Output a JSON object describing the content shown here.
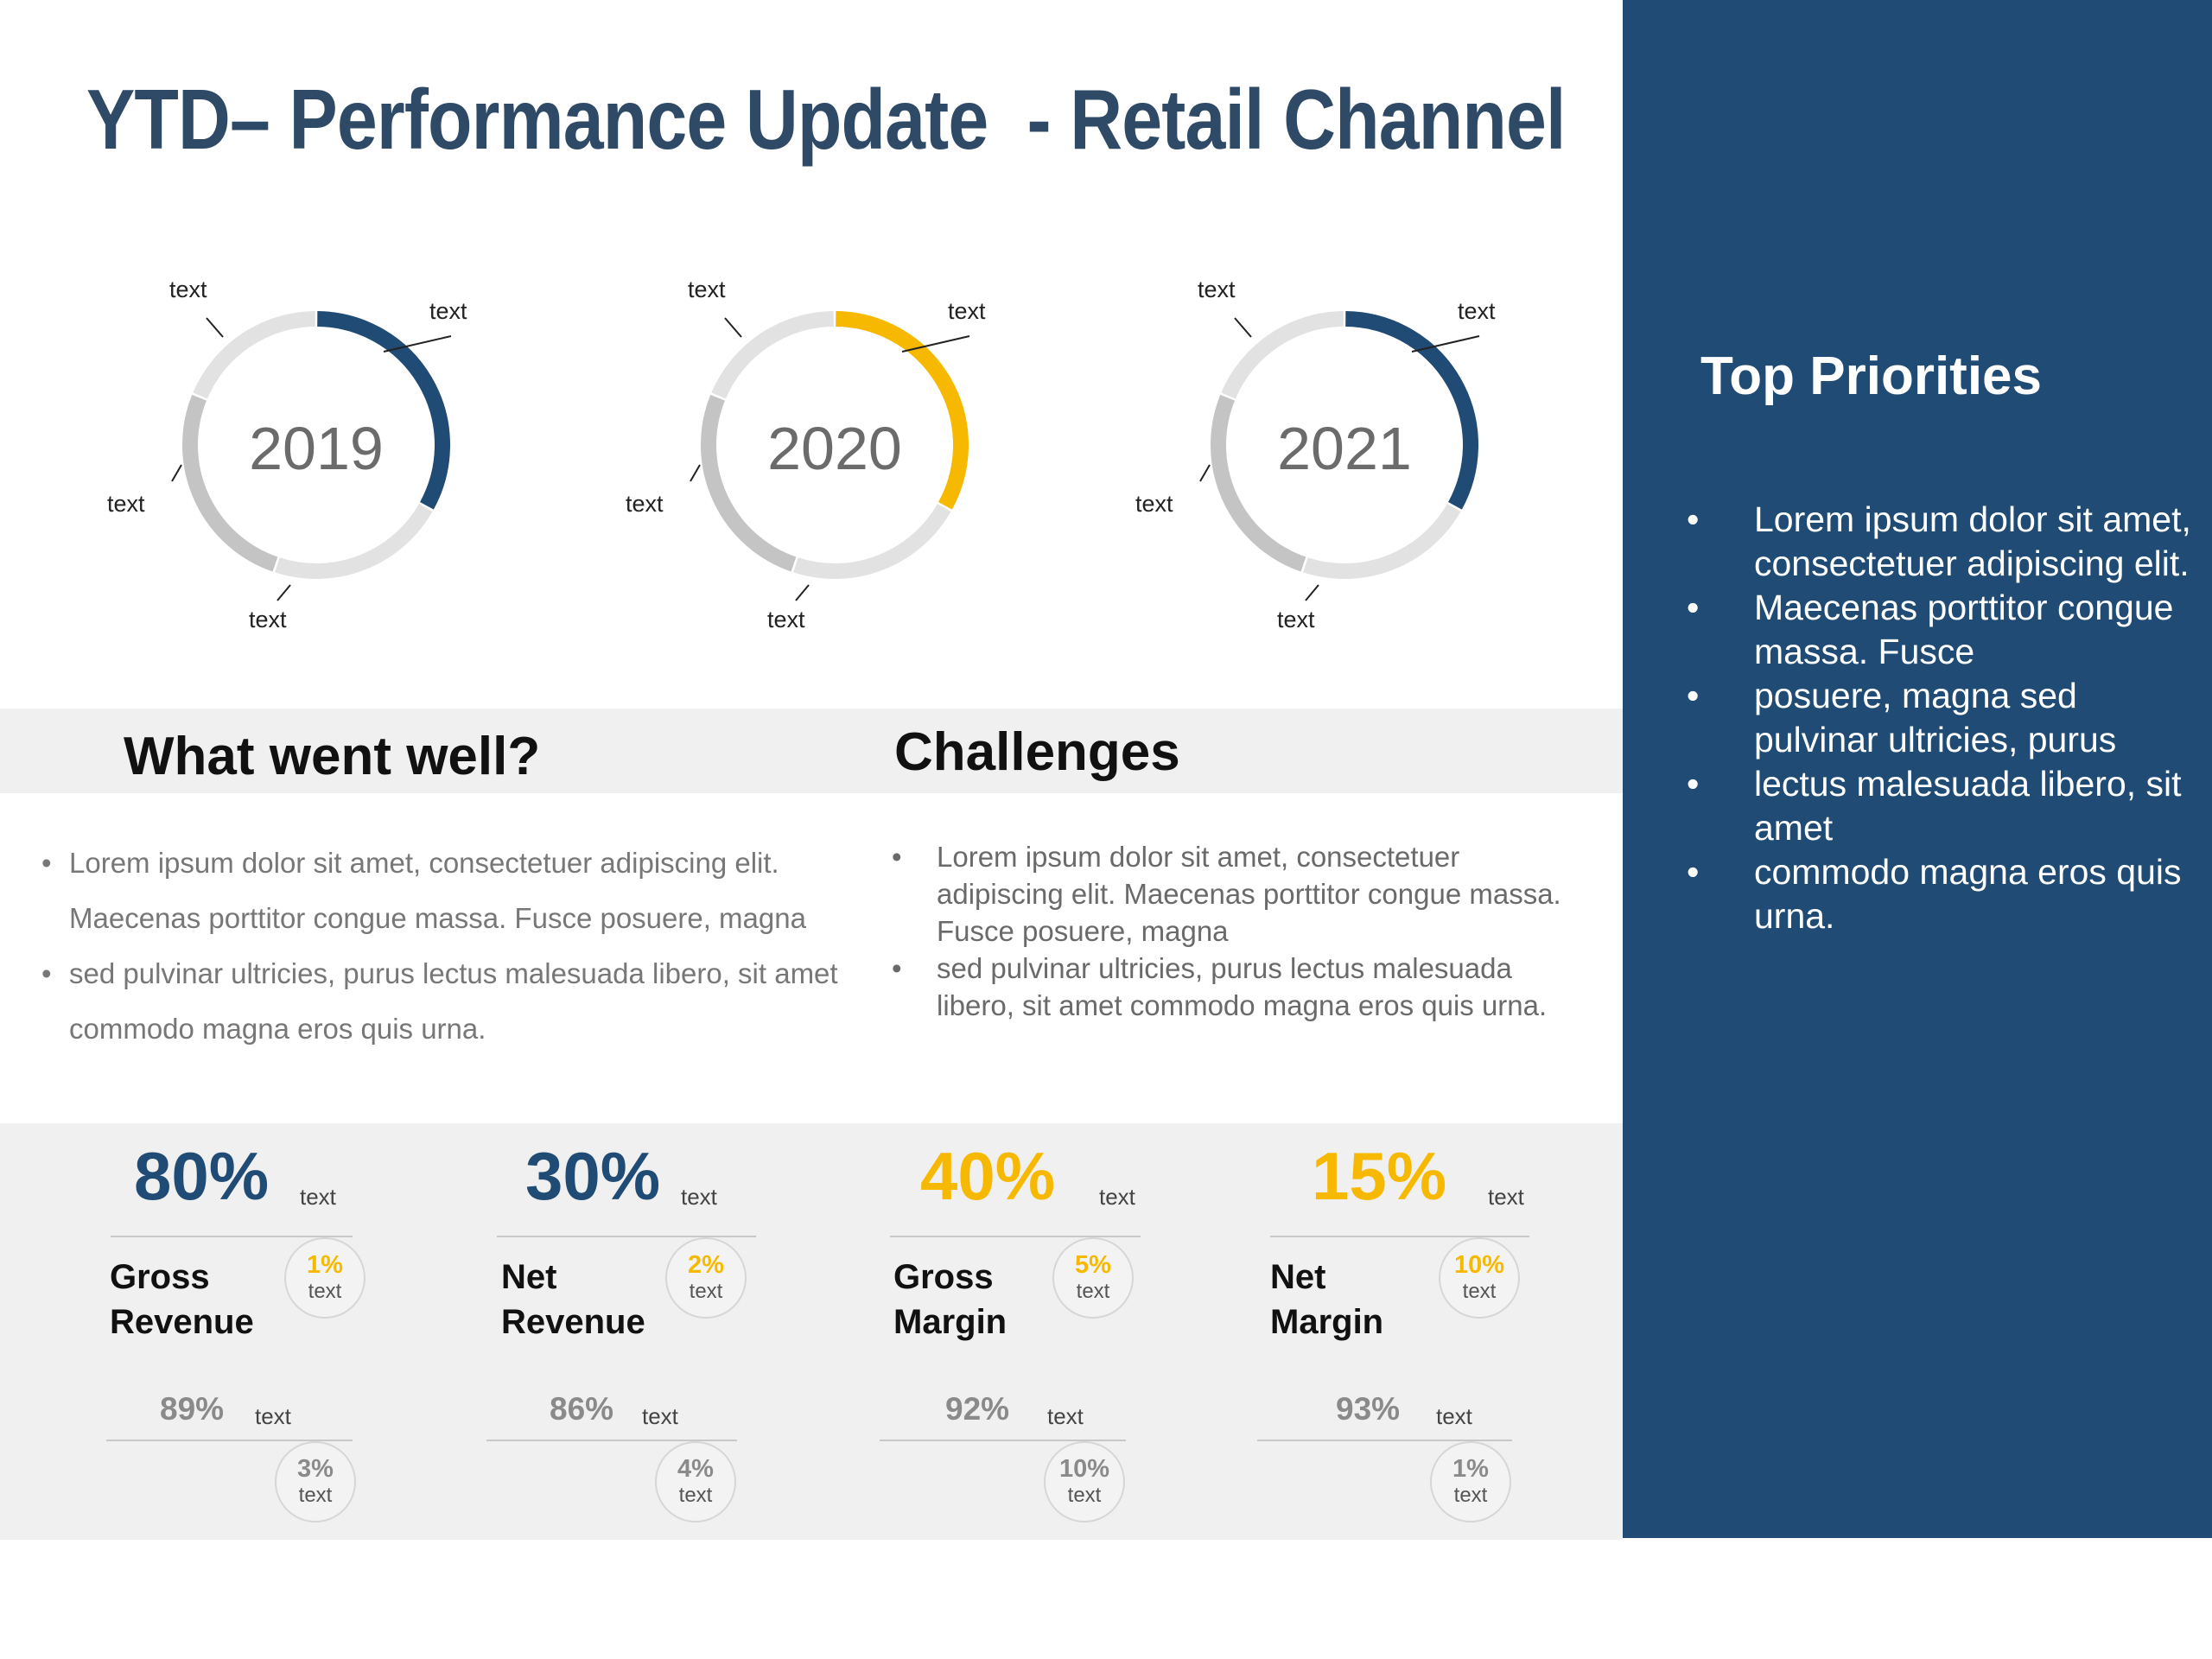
{
  "title": "YTD– Performance Update  - Retail Channel",
  "colors": {
    "blue": "#1f4b74",
    "yellow": "#f7b900",
    "gray": "#c4c4c4",
    "light_gray": "#e2e2e2"
  },
  "donuts": [
    {
      "year": "2019",
      "accent": "#1f4b74",
      "accent_fraction": 0.33,
      "labels": [
        "text",
        "text",
        "text",
        "text"
      ]
    },
    {
      "year": "2020",
      "accent": "#f7b900",
      "accent_fraction": 0.33,
      "labels": [
        "text",
        "text",
        "text",
        "text"
      ]
    },
    {
      "year": "2021",
      "accent": "#1f4b74",
      "accent_fraction": 0.33,
      "labels": [
        "text",
        "text",
        "text",
        "text"
      ]
    }
  ],
  "well": {
    "heading": "What went well?",
    "bullets": [
      "Lorem ipsum dolor sit amet, consectetuer adipiscing elit. Maecenas porttitor congue massa. Fusce posuere, magna",
      "sed pulvinar ultricies, purus lectus malesuada libero, sit amet commodo magna eros quis urna."
    ]
  },
  "challenges": {
    "heading": "Challenges",
    "bullets": [
      "Lorem ipsum dolor sit amet, consectetuer adipiscing elit. Maecenas porttitor congue massa. Fusce posuere, magna",
      "sed pulvinar ultricies, purus lectus malesuada libero, sit amet commodo magna eros quis urna."
    ]
  },
  "priorities": {
    "heading": "Top Priorities",
    "bullets": [
      "Lorem ipsum dolor sit amet, consectetuer adipiscing elit.",
      "Maecenas porttitor congue massa. Fusce",
      "posuere, magna sed pulvinar ultricies, purus",
      "lectus malesuada libero, sit amet",
      "commodo magna eros quis urna."
    ]
  },
  "metrics": [
    {
      "pct": "80%",
      "pct_color": "#1f4b74",
      "pct_label": "text",
      "name1": "Gross",
      "name2": "Revenue",
      "badge_pct": "1%",
      "badge_text": "text",
      "sec_pct": "89%",
      "sec_label": "text",
      "sec_badge_pct": "3%",
      "sec_badge_text": "text"
    },
    {
      "pct": "30%",
      "pct_color": "#1f4b74",
      "pct_label": "text",
      "name1": "Net",
      "name2": "Revenue",
      "badge_pct": "2%",
      "badge_text": "text",
      "sec_pct": "86%",
      "sec_label": "text",
      "sec_badge_pct": "4%",
      "sec_badge_text": "text"
    },
    {
      "pct": "40%",
      "pct_color": "#f7b900",
      "pct_label": "text",
      "name1": "Gross",
      "name2": "Margin",
      "badge_pct": "5%",
      "badge_text": "text",
      "sec_pct": "92%",
      "sec_label": "text",
      "sec_badge_pct": "10%",
      "sec_badge_text": "text"
    },
    {
      "pct": "15%",
      "pct_color": "#f7b900",
      "pct_label": "text",
      "name1": "Net",
      "name2": "Margin",
      "badge_pct": "10%",
      "badge_text": "text",
      "sec_pct": "93%",
      "sec_label": "text",
      "sec_badge_pct": "1%",
      "sec_badge_text": "text"
    }
  ]
}
